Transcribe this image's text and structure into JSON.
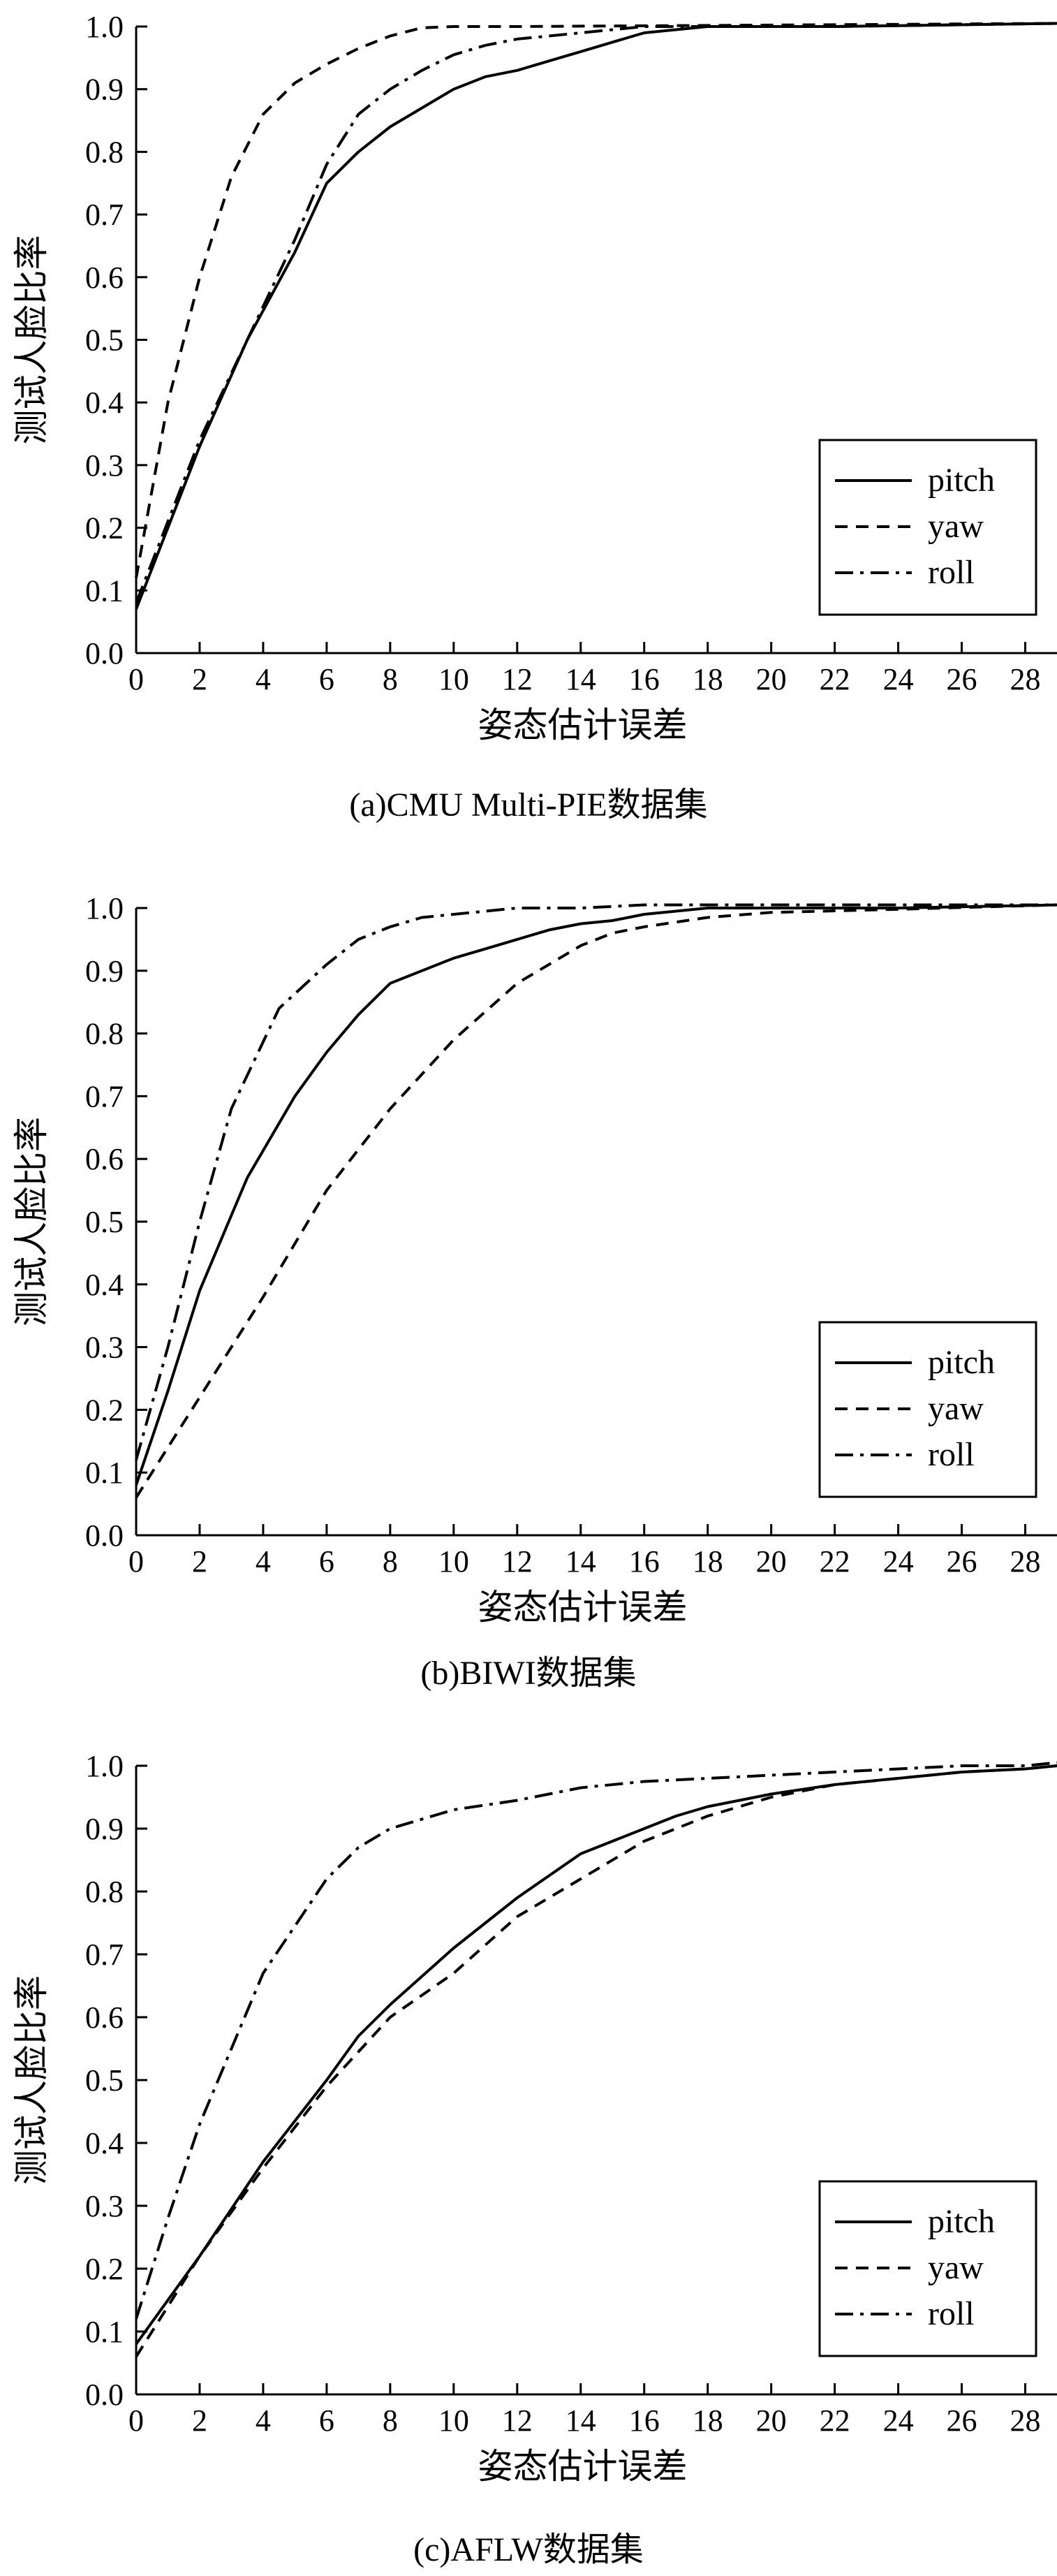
{
  "chart_data": [
    {
      "type": "line",
      "caption": "(a)CMU Multi-PIE数据集",
      "xlabel": "姿态估计误差",
      "ylabel": "测试人脸比率",
      "xlim": [
        0,
        29
      ],
      "ylim": [
        0,
        1.0
      ],
      "xticks": [
        "0",
        "2",
        "4",
        "6",
        "8",
        "10",
        "12",
        "14",
        "16",
        "18",
        "20",
        "22",
        "24",
        "26",
        "28"
      ],
      "yticks": [
        "0.0",
        "0.1",
        "0.2",
        "0.3",
        "0.4",
        "0.5",
        "0.6",
        "0.7",
        "0.8",
        "0.9",
        "1.0"
      ],
      "legend_position": "bottom-right",
      "series": [
        {
          "name": "pitch",
          "dash": "solid",
          "x": [
            0,
            1,
            2,
            3.5,
            5,
            6,
            7,
            8,
            9,
            10,
            11,
            12,
            13,
            14,
            15,
            16,
            18,
            22,
            29
          ],
          "y": [
            0.07,
            0.2,
            0.33,
            0.5,
            0.64,
            0.75,
            0.8,
            0.84,
            0.87,
            0.9,
            0.92,
            0.93,
            0.945,
            0.96,
            0.975,
            0.99,
            1.0,
            1.0,
            1.005
          ]
        },
        {
          "name": "yaw",
          "dash": "dash",
          "x": [
            0,
            1,
            2,
            3,
            4,
            5,
            6,
            7,
            8,
            9,
            10,
            12,
            29
          ],
          "y": [
            0.12,
            0.4,
            0.6,
            0.76,
            0.86,
            0.91,
            0.94,
            0.965,
            0.985,
            0.998,
            1.0,
            1.0,
            1.005
          ]
        },
        {
          "name": "roll",
          "dash": "dashdot",
          "x": [
            0,
            1,
            2,
            3.5,
            5,
            6,
            7,
            8,
            9,
            10,
            11,
            12,
            13,
            14,
            15,
            16,
            18,
            22,
            29
          ],
          "y": [
            0.08,
            0.21,
            0.34,
            0.5,
            0.66,
            0.78,
            0.86,
            0.9,
            0.93,
            0.955,
            0.97,
            0.98,
            0.985,
            0.99,
            0.995,
            1.0,
            1.0,
            1.0,
            1.005
          ]
        }
      ]
    },
    {
      "type": "line",
      "caption": "(b)BIWI数据集",
      "xlabel": "姿态估计误差",
      "ylabel": "测试人脸比率",
      "xlim": [
        0,
        29
      ],
      "ylim": [
        0,
        1.0
      ],
      "xticks": [
        "0",
        "2",
        "4",
        "6",
        "8",
        "10",
        "12",
        "14",
        "16",
        "18",
        "20",
        "22",
        "24",
        "26",
        "28"
      ],
      "yticks": [
        "0.0",
        "0.1",
        "0.2",
        "0.3",
        "0.4",
        "0.5",
        "0.6",
        "0.7",
        "0.8",
        "0.9",
        "1.0"
      ],
      "legend_position": "bottom-right",
      "series": [
        {
          "name": "pitch",
          "dash": "solid",
          "x": [
            0,
            1,
            2,
            3,
            3.5,
            5,
            6,
            7,
            8,
            9,
            10,
            11,
            12,
            13,
            14,
            15,
            16,
            18,
            20,
            24,
            29
          ],
          "y": [
            0.08,
            0.23,
            0.39,
            0.51,
            0.57,
            0.7,
            0.77,
            0.83,
            0.88,
            0.9,
            0.92,
            0.935,
            0.95,
            0.965,
            0.975,
            0.98,
            0.99,
            1.0,
            1.0,
            1.0,
            1.005
          ]
        },
        {
          "name": "yaw",
          "dash": "dash",
          "x": [
            0,
            2,
            4,
            6,
            8,
            10,
            12,
            14,
            15,
            16,
            18,
            20,
            24,
            29
          ],
          "y": [
            0.06,
            0.22,
            0.38,
            0.55,
            0.68,
            0.79,
            0.88,
            0.94,
            0.96,
            0.97,
            0.985,
            0.993,
            0.998,
            1.005
          ]
        },
        {
          "name": "roll",
          "dash": "dashdot",
          "x": [
            0,
            1,
            2,
            3,
            4.5,
            6,
            7,
            8,
            9,
            10,
            12,
            14,
            16,
            20,
            29
          ],
          "y": [
            0.12,
            0.3,
            0.5,
            0.68,
            0.84,
            0.91,
            0.95,
            0.97,
            0.985,
            0.99,
            1.0,
            1.0,
            1.005,
            1.005,
            1.005
          ]
        }
      ]
    },
    {
      "type": "line",
      "caption": "(c)AFLW数据集",
      "xlabel": "姿态估计误差",
      "ylabel": "测试人脸比率",
      "xlim": [
        0,
        29
      ],
      "ylim": [
        0,
        1.0
      ],
      "xticks": [
        "0",
        "2",
        "4",
        "6",
        "8",
        "10",
        "12",
        "14",
        "16",
        "18",
        "20",
        "22",
        "24",
        "26",
        "28"
      ],
      "yticks": [
        "0.0",
        "0.1",
        "0.2",
        "0.3",
        "0.4",
        "0.5",
        "0.6",
        "0.7",
        "0.8",
        "0.9",
        "1.0"
      ],
      "legend_position": "bottom-right",
      "series": [
        {
          "name": "pitch",
          "dash": "solid",
          "x": [
            0,
            2,
            4,
            6,
            7,
            8,
            10,
            12,
            14,
            16,
            17,
            18,
            20,
            22,
            24,
            26,
            28,
            29
          ],
          "y": [
            0.08,
            0.22,
            0.37,
            0.5,
            0.57,
            0.62,
            0.71,
            0.79,
            0.86,
            0.9,
            0.92,
            0.935,
            0.955,
            0.97,
            0.98,
            0.99,
            0.995,
            1.0
          ]
        },
        {
          "name": "yaw",
          "dash": "dash",
          "x": [
            0,
            2,
            4,
            6,
            8,
            10,
            12,
            14,
            16,
            18,
            20,
            22,
            24,
            26,
            28,
            29
          ],
          "y": [
            0.06,
            0.22,
            0.36,
            0.49,
            0.6,
            0.67,
            0.76,
            0.82,
            0.88,
            0.92,
            0.95,
            0.97,
            0.98,
            0.99,
            0.995,
            1.0
          ]
        },
        {
          "name": "roll",
          "dash": "dashdot",
          "x": [
            0,
            1,
            2,
            4,
            6,
            7,
            8,
            10,
            12,
            14,
            16,
            18,
            20,
            22,
            24,
            26,
            28,
            29
          ],
          "y": [
            0.12,
            0.28,
            0.43,
            0.67,
            0.82,
            0.87,
            0.9,
            0.93,
            0.945,
            0.965,
            0.975,
            0.98,
            0.985,
            0.99,
            0.995,
            1.0,
            1.0,
            1.005
          ]
        }
      ]
    }
  ]
}
